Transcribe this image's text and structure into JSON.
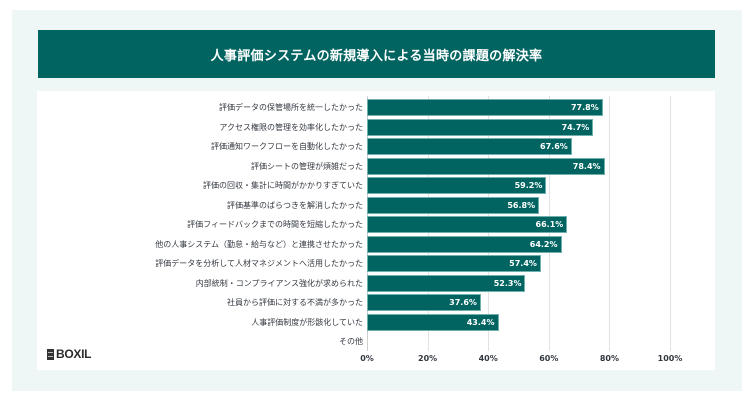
{
  "header": {
    "title": "人事評価システムの新規導入による当時の課題の解決率"
  },
  "logo": {
    "text": "BOXIL"
  },
  "colors": {
    "accent": "#016461",
    "background": "#eef7f6",
    "panel": "#ffffff"
  },
  "chart_data": {
    "type": "bar",
    "orientation": "horizontal",
    "title": "人事評価システムの新規導入による当時の課題の解決率",
    "xlabel": "",
    "ylabel": "",
    "xlim": [
      0,
      100
    ],
    "grid": true,
    "categories": [
      "評価データの保管場所を統一したかった",
      "アクセス権限の管理を効率化したかった",
      "評価通知ワークフローを自動化したかった",
      "評価シートの管理が煩雑だった",
      "評価の回収・集計に時間がかかりすぎていた",
      "評価基準のばらつきを解消したかった",
      "評価フィードバックまでの時間を短縮したかった",
      "他の人事システム（勤怠・給与など）と連携させたかった",
      "評価データを分析して人材マネジメントへ活用したかった",
      "内部統制・コンプライアンス強化が求められた",
      "社員から評価に対する不満が多かった",
      "人事評価制度が形骸化していた",
      "その他"
    ],
    "values": [
      77.8,
      74.7,
      67.6,
      78.4,
      59.2,
      56.8,
      66.1,
      64.2,
      57.4,
      52.3,
      37.6,
      43.4,
      null
    ],
    "value_labels": [
      "77.8%",
      "74.7%",
      "67.6%",
      "78.4%",
      "59.2%",
      "56.8%",
      "66.1%",
      "64.2%",
      "57.4%",
      "52.3%",
      "37.6%",
      "43.4%",
      ""
    ],
    "x_ticks": [
      "0%",
      "20%",
      "40%",
      "60%",
      "80%",
      "100%"
    ],
    "x_tick_values": [
      0,
      20,
      40,
      60,
      80,
      100
    ]
  }
}
